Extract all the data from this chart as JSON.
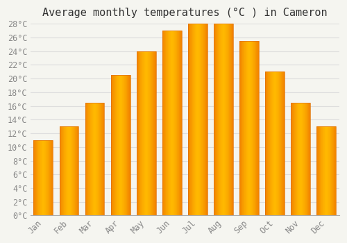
{
  "title": "Average monthly temperatures (°C ) in Cameron",
  "months": [
    "Jan",
    "Feb",
    "Mar",
    "Apr",
    "May",
    "Jun",
    "Jul",
    "Aug",
    "Sep",
    "Oct",
    "Nov",
    "Dec"
  ],
  "values": [
    11,
    13,
    16.5,
    20.5,
    24,
    27,
    28,
    28,
    25.5,
    21,
    16.5,
    13
  ],
  "bar_color_center": "#FFB800",
  "bar_color_edge": "#F08000",
  "background_color": "#F5F5F0",
  "grid_color": "#DDDDDD",
  "tick_label_color": "#888888",
  "title_color": "#333333",
  "ylim": [
    0,
    28
  ],
  "ytick_max": 28,
  "ytick_step": 2,
  "title_fontsize": 11,
  "tick_fontsize": 8.5,
  "figsize": [
    5.0,
    3.5
  ],
  "dpi": 100
}
